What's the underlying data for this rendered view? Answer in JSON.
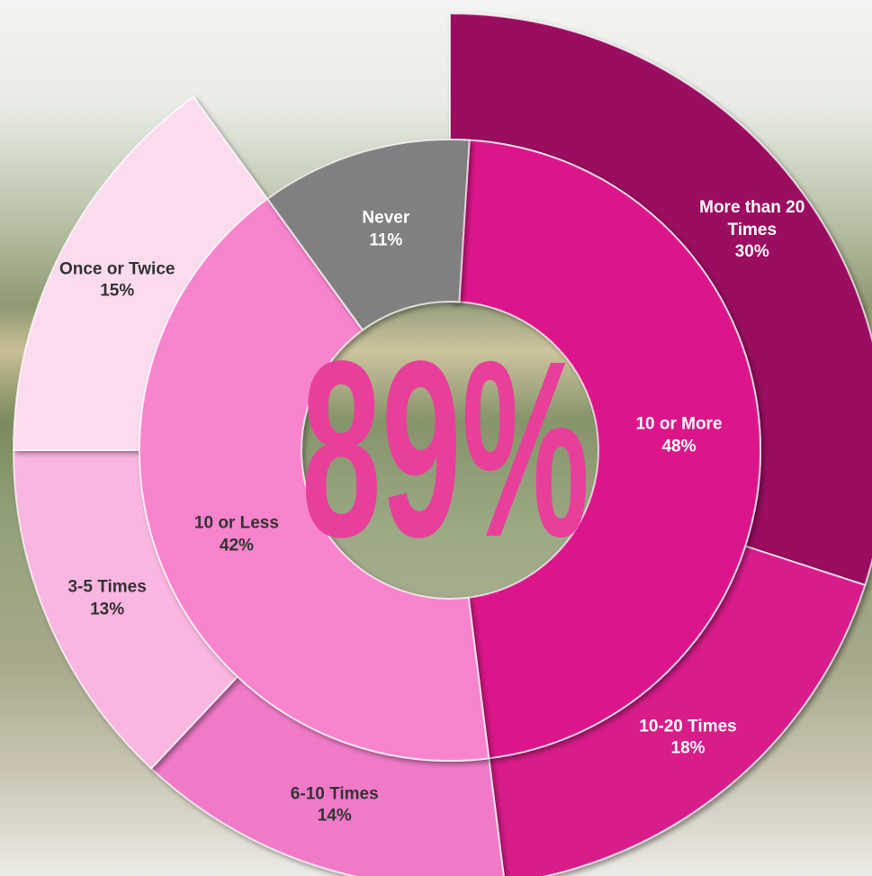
{
  "chart_data": {
    "type": "sunburst",
    "center_label": "89%",
    "center_color": "#e8409a",
    "inner": {
      "categories": [
        "10 or More",
        "10 or Less",
        "Never"
      ],
      "values": [
        48,
        42,
        11
      ],
      "value_labels": [
        "48%",
        "42%",
        "11%"
      ],
      "colors": [
        "#dc148a",
        "#f784cc",
        "#808080"
      ]
    },
    "outer": {
      "categories": [
        "More than 20 Times",
        "10-20 Times",
        "6-10 Times",
        "3-5 Times",
        "Once or Twice"
      ],
      "values": [
        30,
        18,
        14,
        13,
        15
      ],
      "value_labels": [
        "30%",
        "18%",
        "14%",
        "13%",
        "15%"
      ],
      "colors": [
        "#9a1060",
        "#d81b8a",
        "#f07ac8",
        "#f9b6e0",
        "#fbdcef"
      ]
    }
  }
}
